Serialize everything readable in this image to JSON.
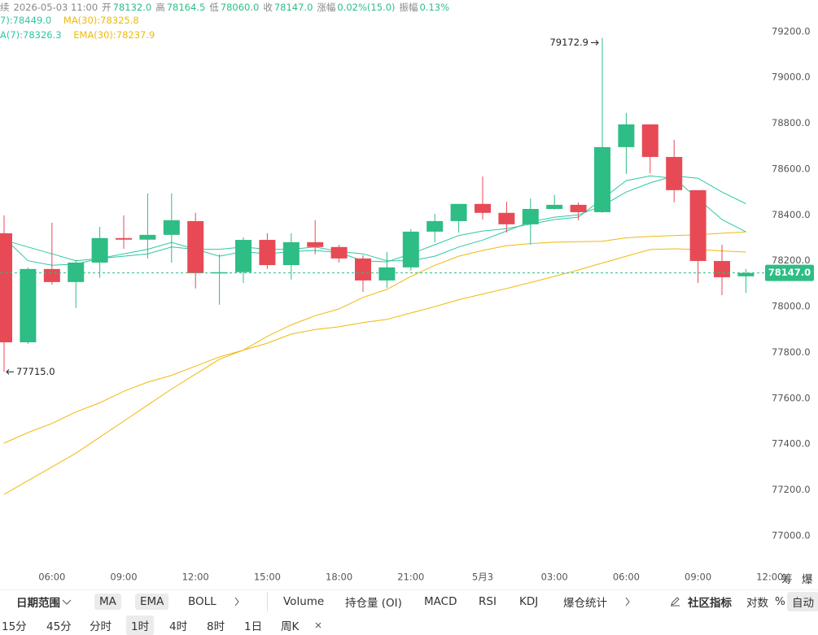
{
  "header": {
    "prefix": "续",
    "time": "2026-05-03 11:00",
    "fields": [
      [
        "开",
        "78132.0"
      ],
      [
        "高",
        "78164.5"
      ],
      [
        "低",
        "78060.0"
      ],
      [
        "收",
        "78147.0"
      ],
      [
        "涨幅",
        "0.02%(15.0)"
      ],
      [
        "振幅",
        "0.13%"
      ]
    ]
  },
  "chart_data": {
    "type": "candlestick",
    "up_color": "#2ebd85",
    "down_color": "#e84a55",
    "categories": [
      null,
      null,
      "06:00",
      null,
      null,
      "09:00",
      null,
      null,
      "12:00",
      null,
      null,
      "15:00",
      null,
      null,
      "18:00",
      null,
      null,
      "21:00",
      null,
      null,
      "5月3",
      null,
      null,
      "03:00",
      null,
      null,
      "06:00",
      null,
      null,
      "09:00",
      null,
      null,
      "12:00"
    ],
    "open": [
      78320,
      77844,
      78164,
      78107,
      78192,
      78299,
      78292,
      78313,
      78373,
      78146,
      78150,
      78291,
      78181,
      78281,
      78260,
      78210,
      78114,
      78171,
      78327,
      78373,
      78448,
      78409,
      78359,
      78426,
      78444,
      78412,
      78696,
      78795,
      78653,
      78508,
      78199,
      78132.0,
      null
    ],
    "high": [
      78398,
      78171,
      78366,
      78203,
      78348,
      78398,
      78494,
      78494,
      78409,
      78228,
      78302,
      78320,
      78320,
      78377,
      78270,
      78224,
      78238,
      78338,
      78405,
      78448,
      78568,
      78458,
      78472,
      78487,
      78455,
      79172.9,
      78845,
      78795,
      78728,
      78508,
      78270,
      78164.5,
      null
    ],
    "low": [
      77715,
      77837,
      78096,
      77993,
      78125,
      78252,
      78210,
      78192,
      78079,
      78008,
      78103,
      78164,
      78118,
      78228,
      78192,
      78064,
      78082,
      78157,
      78281,
      78323,
      78380,
      78323,
      78270,
      78423,
      78377,
      78409,
      78579,
      78582,
      78455,
      78103,
      78050,
      78060.0,
      null
    ],
    "close": [
      77844,
      78164,
      78107,
      78192,
      78299,
      78292,
      78313,
      78377,
      78146,
      78150,
      78291,
      78181,
      78281,
      78260,
      78210,
      78114,
      78171,
      78327,
      78373,
      78448,
      78409,
      78359,
      78426,
      78444,
      78412,
      78696,
      78795,
      78653,
      78508,
      78199,
      78128,
      78147.0,
      null
    ],
    "series": [
      {
        "label": "7):78449.0",
        "color": "#2ec7a0",
        "values": [
          78290,
          78260,
          78230,
          78200,
          78210,
          78220,
          78230,
          78260,
          78250,
          78250,
          78260,
          78250,
          78250,
          78260,
          78240,
          78230,
          78200,
          78200,
          78220,
          78260,
          78290,
          78330,
          78370,
          78390,
          78400,
          78440,
          78500,
          78540,
          78570,
          78560,
          78500,
          78449.0,
          null
        ]
      },
      {
        "label": "MA(30):78325.8",
        "color": "#f0b90b",
        "values": [
          77181,
          77240,
          77300,
          77360,
          77430,
          77500,
          77570,
          77640,
          77705,
          77770,
          77810,
          77870,
          77920,
          77960,
          77990,
          78040,
          78075,
          78132,
          78180,
          78220,
          78245,
          78266,
          78275,
          78281,
          78283,
          78285,
          78300,
          78306,
          78310,
          78313,
          78320,
          78325.8,
          null
        ]
      },
      {
        "label": "A(7):78326.3",
        "color": "#2ec7a0",
        "values": [
          78300,
          78200,
          78180,
          78185,
          78210,
          78230,
          78250,
          78280,
          78250,
          78220,
          78240,
          78230,
          78240,
          78245,
          78235,
          78200,
          78195,
          78230,
          78270,
          78310,
          78330,
          78340,
          78360,
          78380,
          78390,
          78470,
          78550,
          78570,
          78560,
          78470,
          78380,
          78326.3,
          null
        ]
      },
      {
        "label": "EMA(30):78237.9",
        "color": "#f0b90b",
        "values": [
          77404,
          77450,
          77490,
          77540,
          77580,
          77630,
          77670,
          77700,
          77740,
          77780,
          77810,
          77840,
          77880,
          77900,
          77912,
          77930,
          77944,
          77972,
          78000,
          78030,
          78055,
          78079,
          78105,
          78132,
          78160,
          78190,
          78220,
          78249,
          78252,
          78249,
          78243,
          78237.9,
          null
        ]
      }
    ],
    "ylim": [
      76854,
      79338
    ],
    "yticks": [
      {
        "value": 77000,
        "label": "77000.0"
      },
      {
        "value": 77200,
        "label": "77200.0"
      },
      {
        "value": 77400,
        "label": "77400.0"
      },
      {
        "value": 77600,
        "label": "77600.0"
      },
      {
        "value": 77800,
        "label": "77800.0"
      },
      {
        "value": 78000,
        "label": "78000.0"
      },
      {
        "value": 78200,
        "label": "78200.0"
      },
      {
        "value": 78400,
        "label": "78400.0"
      },
      {
        "value": 78600,
        "label": "78600.0"
      },
      {
        "value": 78800,
        "label": "78800.0"
      },
      {
        "value": 79000,
        "label": "79000.0"
      },
      {
        "value": 79200,
        "label": "79200.0"
      }
    ],
    "annotations": [
      {
        "value": 79172.9,
        "label": "79172.9"
      },
      {
        "value": 77715,
        "label": "77715.0"
      }
    ],
    "last_price": {
      "value": 78147,
      "label": "78147.0"
    }
  },
  "side_tabs": [
    "筹",
    "爆"
  ],
  "toolbar": {
    "date_range": "日期范围",
    "overlays": [
      "MA",
      "EMA",
      "BOLL"
    ],
    "indicators": [
      "Volume",
      "持仓量 (OI)",
      "MACD",
      "RSI",
      "KDJ",
      "爆仓统计"
    ],
    "community": "社区指标",
    "scale": [
      "对数",
      "%",
      "自动"
    ]
  },
  "intervals": [
    "15分",
    "45分",
    "分时",
    "1时",
    "4时",
    "8时",
    "1日",
    "周K"
  ]
}
